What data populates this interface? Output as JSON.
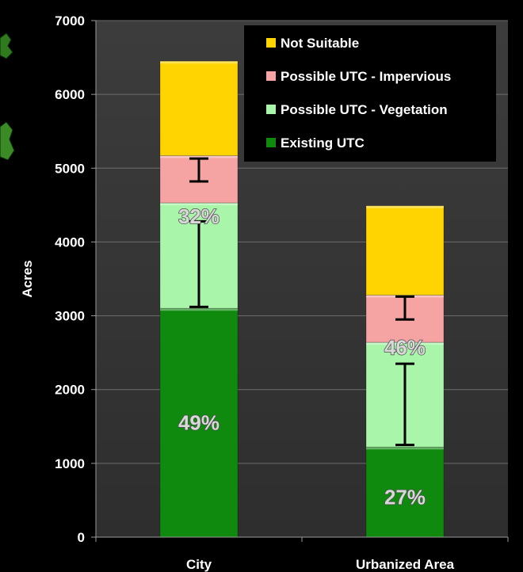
{
  "chart_data": {
    "type": "bar",
    "stacked": true,
    "ylabel": "Acres",
    "ylim": [
      0,
      7000
    ],
    "yticks": [
      0,
      1000,
      2000,
      3000,
      4000,
      5000,
      6000,
      7000
    ],
    "grid": true,
    "legend_position": "top-right",
    "categories": [
      "City",
      "Urbanized Area"
    ],
    "series": [
      {
        "name": "Existing UTC",
        "color": "#0f8a0f",
        "values": [
          3100,
          1220
        ]
      },
      {
        "name": "Possible UTC - Vegetation",
        "color": "#a9f5a9",
        "values": [
          1430,
          1420
        ]
      },
      {
        "name": "Possible UTC - Impervious",
        "color": "#f5a3a3",
        "values": [
          640,
          640
        ]
      },
      {
        "name": "Not Suitable",
        "color": "#ffd400",
        "values": [
          1280,
          1210
        ]
      }
    ],
    "legend_order": [
      "Not Suitable",
      "Possible UTC - Impervious",
      "Possible UTC - Vegetation",
      "Existing UTC"
    ],
    "annotations": [
      {
        "category": "City",
        "text": "49%",
        "y": 1550
      },
      {
        "category": "City",
        "text": "32%",
        "y": 4350
      },
      {
        "category": "Urbanized Area",
        "text": "27%",
        "y": 540
      },
      {
        "category": "Urbanized Area",
        "text": "46%",
        "y": 2570
      }
    ],
    "error_bars": [
      {
        "category": "City",
        "y": 3120,
        "ymax": 4280
      },
      {
        "category": "City",
        "y": 4820,
        "ymax": 5130
      },
      {
        "category": "Urbanized Area",
        "y": 1250,
        "ymax": 2350
      },
      {
        "category": "Urbanized Area",
        "y": 2950,
        "ymax": 3260
      }
    ]
  }
}
